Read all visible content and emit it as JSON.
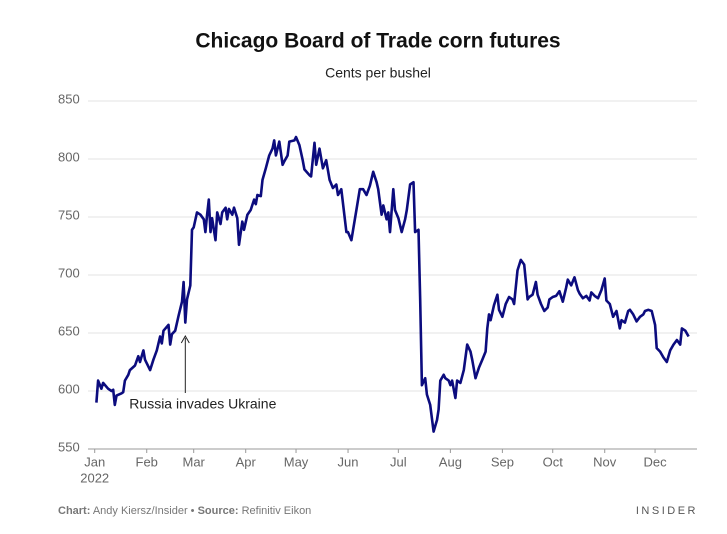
{
  "chart_data": {
    "type": "line",
    "title": "Chicago Board of Trade corn futures",
    "subtitle": "Cents per bushel",
    "color": "#0c0c7e",
    "xlim": [
      -4,
      359
    ],
    "xticks": [
      {
        "value": 0,
        "label": "Jan"
      },
      {
        "value": 31,
        "label": "Feb"
      },
      {
        "value": 59,
        "label": "Mar"
      },
      {
        "value": 90,
        "label": "Apr"
      },
      {
        "value": 120,
        "label": "May"
      },
      {
        "value": 151,
        "label": "Jun"
      },
      {
        "value": 181,
        "label": "Jul"
      },
      {
        "value": 212,
        "label": "Aug"
      },
      {
        "value": 243,
        "label": "Sep"
      },
      {
        "value": 273,
        "label": "Oct"
      },
      {
        "value": 304,
        "label": "Nov"
      },
      {
        "value": 334,
        "label": "Dec"
      }
    ],
    "x_year": "2022",
    "ylim": [
      550,
      850
    ],
    "yticks": [
      550,
      600,
      650,
      700,
      750,
      800,
      850
    ],
    "grid": true,
    "annotation": {
      "text": "Russia invades Ukraine",
      "x": 54
    },
    "x": [
      1,
      2,
      4,
      5,
      8,
      10,
      11,
      12,
      13,
      16,
      17,
      18,
      20,
      21,
      24,
      26,
      27,
      29,
      30,
      33,
      35,
      37,
      39,
      40,
      41,
      44,
      45,
      46,
      48,
      50,
      52,
      53,
      54,
      55,
      57,
      58,
      59,
      61,
      63,
      65,
      66,
      67,
      68,
      69,
      70,
      72,
      73,
      75,
      76,
      78,
      79,
      80,
      82,
      83,
      85,
      86,
      88,
      89,
      91,
      93,
      95,
      96,
      97,
      99,
      100,
      102,
      104,
      106,
      107,
      108,
      110,
      112,
      113,
      115,
      116,
      119,
      120,
      122,
      124,
      125,
      128,
      129,
      131,
      132,
      134,
      136,
      138,
      140,
      142,
      144,
      145,
      147,
      150,
      151,
      153,
      154,
      156,
      158,
      160,
      162,
      164,
      166,
      168,
      169,
      171,
      172,
      174,
      175,
      176,
      178,
      179,
      181,
      183,
      185,
      186,
      188,
      190,
      191,
      193,
      194,
      195,
      197,
      198,
      200,
      202,
      204,
      205,
      206,
      208,
      209,
      211,
      212,
      213,
      215,
      216,
      218,
      220,
      222,
      224,
      225,
      227,
      229,
      231,
      233,
      234,
      235,
      236,
      238,
      240,
      241,
      243,
      245,
      247,
      249,
      250,
      252,
      254,
      256,
      258,
      259,
      261,
      263,
      264,
      266,
      268,
      270,
      271,
      273,
      275,
      277,
      279,
      281,
      282,
      284,
      286,
      288,
      289,
      291,
      293,
      295,
      296,
      298,
      300,
      302,
      304,
      305,
      307,
      309,
      311,
      313,
      314,
      316,
      318,
      319,
      321,
      323,
      325,
      327,
      328,
      330,
      332,
      334,
      335,
      337,
      339,
      341,
      343,
      345,
      347,
      349,
      350,
      352,
      354
    ],
    "values": [
      590,
      609,
      602,
      607,
      602,
      600,
      601,
      588,
      596,
      598,
      599,
      609,
      614,
      618,
      622,
      630,
      625,
      635,
      627,
      618,
      627,
      635,
      647,
      641,
      652,
      657,
      640,
      649,
      652,
      665,
      677,
      694,
      659,
      679,
      691,
      739,
      741,
      754,
      752,
      748,
      737,
      752,
      765,
      737,
      749,
      730,
      754,
      744,
      754,
      758,
      748,
      757,
      752,
      758,
      749,
      726,
      746,
      739,
      752,
      756,
      765,
      761,
      769,
      768,
      782,
      792,
      803,
      809,
      816,
      803,
      815,
      795,
      798,
      803,
      815,
      816,
      819,
      812,
      799,
      791,
      786,
      785,
      814,
      795,
      809,
      792,
      799,
      782,
      775,
      778,
      769,
      774,
      737,
      737,
      730,
      739,
      756,
      774,
      774,
      769,
      777,
      789,
      780,
      774,
      752,
      760,
      748,
      754,
      737,
      774,
      756,
      749,
      737,
      748,
      756,
      778,
      780,
      737,
      739,
      678,
      605,
      611,
      597,
      588,
      565,
      575,
      584,
      609,
      614,
      611,
      609,
      605,
      609,
      594,
      609,
      607,
      618,
      640,
      634,
      627,
      611,
      620,
      627,
      634,
      654,
      666,
      661,
      674,
      683,
      670,
      664,
      675,
      681,
      679,
      675,
      704,
      713,
      709,
      679,
      681,
      683,
      694,
      683,
      675,
      669,
      672,
      679,
      681,
      682,
      686,
      677,
      689,
      696,
      691,
      698,
      687,
      684,
      680,
      682,
      678,
      685,
      682,
      680,
      687,
      697,
      678,
      675,
      664,
      669,
      654,
      661,
      659,
      669,
      670,
      666,
      660,
      664,
      666,
      669,
      670,
      669,
      657,
      637,
      634,
      629,
      625,
      635,
      640,
      644,
      640,
      654,
      652,
      647
    ]
  },
  "footer": {
    "chart_label": "Chart:",
    "chart_credit": "Andy Kiersz/Insider •",
    "source_label": "Source:",
    "source_credit": "Refinitiv Eikon",
    "logo": "INSIDER"
  }
}
